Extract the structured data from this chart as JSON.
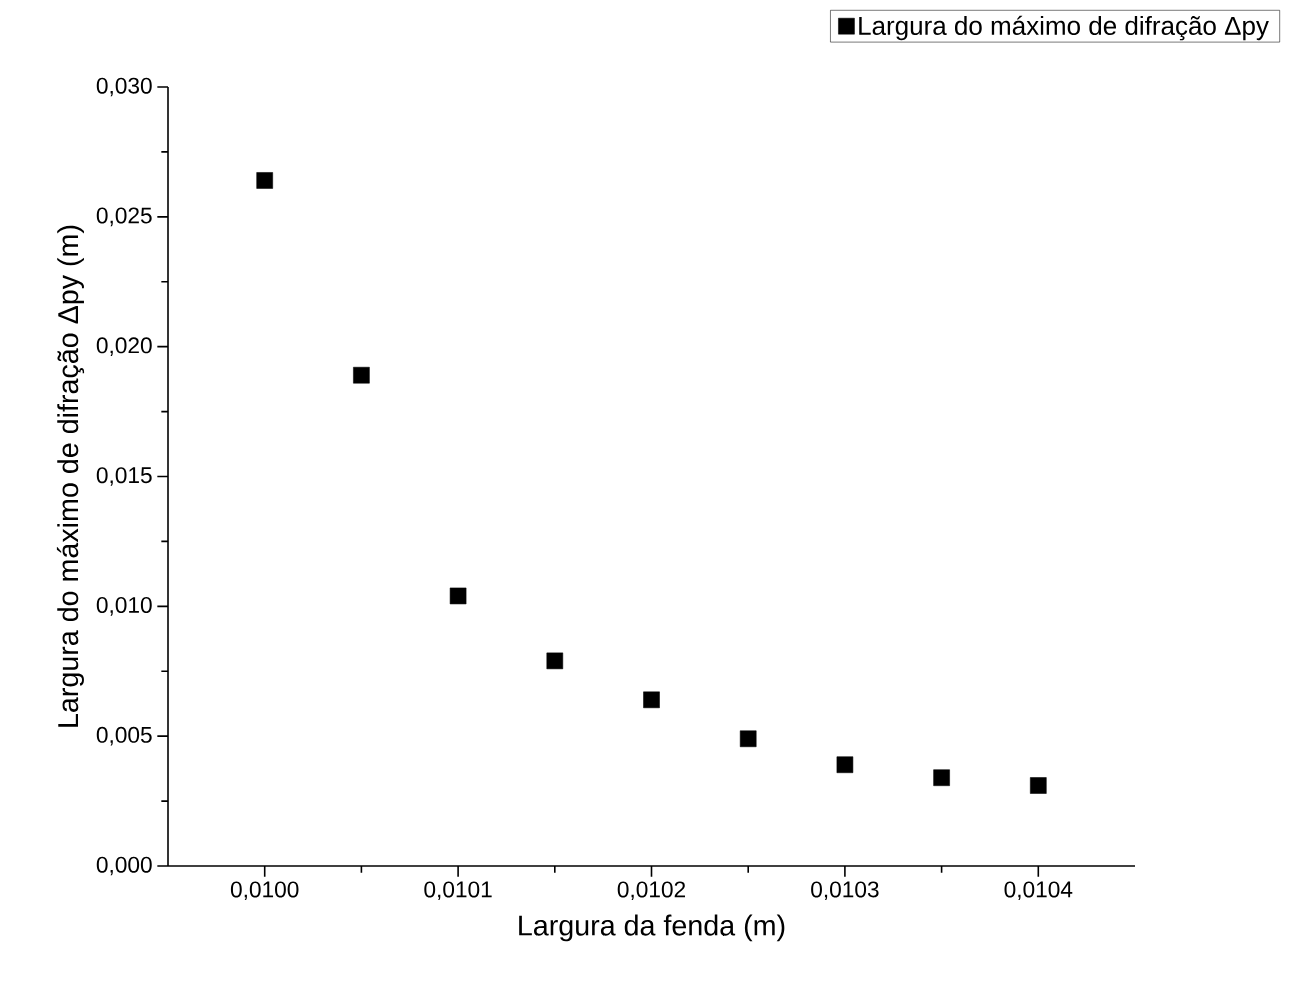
{
  "chart_data": {
    "type": "scatter",
    "xlabel": "Largura da fenda (m)",
    "ylabel": "Largura do máximo de difração Δpy (m)",
    "x": [
      0.01,
      0.01005,
      0.0101,
      0.01015,
      0.0102,
      0.01025,
      0.0103,
      0.01035,
      0.0104
    ],
    "series": [
      {
        "name": "Largura do máximo de difração Δpy",
        "color": "#000000",
        "values": [
          0.0264,
          0.0189,
          0.0104,
          0.0079,
          0.0064,
          0.0049,
          0.0039,
          0.0034,
          0.0031
        ]
      }
    ],
    "xlim": [
      0.00995,
      0.01045
    ],
    "ylim": [
      0,
      0.03
    ],
    "xticks": [
      {
        "value": 0.01,
        "label": "0,0100"
      },
      {
        "value": 0.0101,
        "label": "0,0101"
      },
      {
        "value": 0.0102,
        "label": "0,0102"
      },
      {
        "value": 0.0103,
        "label": "0,0103"
      },
      {
        "value": 0.0104,
        "label": "0,0104"
      }
    ],
    "yticks": [
      {
        "value": 0,
        "label": "0,000"
      },
      {
        "value": 0.005,
        "label": "0,005"
      },
      {
        "value": 0.01,
        "label": "0,010"
      },
      {
        "value": 0.015,
        "label": "0,015"
      },
      {
        "value": 0.02,
        "label": "0,020"
      },
      {
        "value": 0.025,
        "label": "0,025"
      },
      {
        "value": 0.03,
        "label": "0,030"
      }
    ],
    "legend": "top right",
    "marker": "square"
  }
}
